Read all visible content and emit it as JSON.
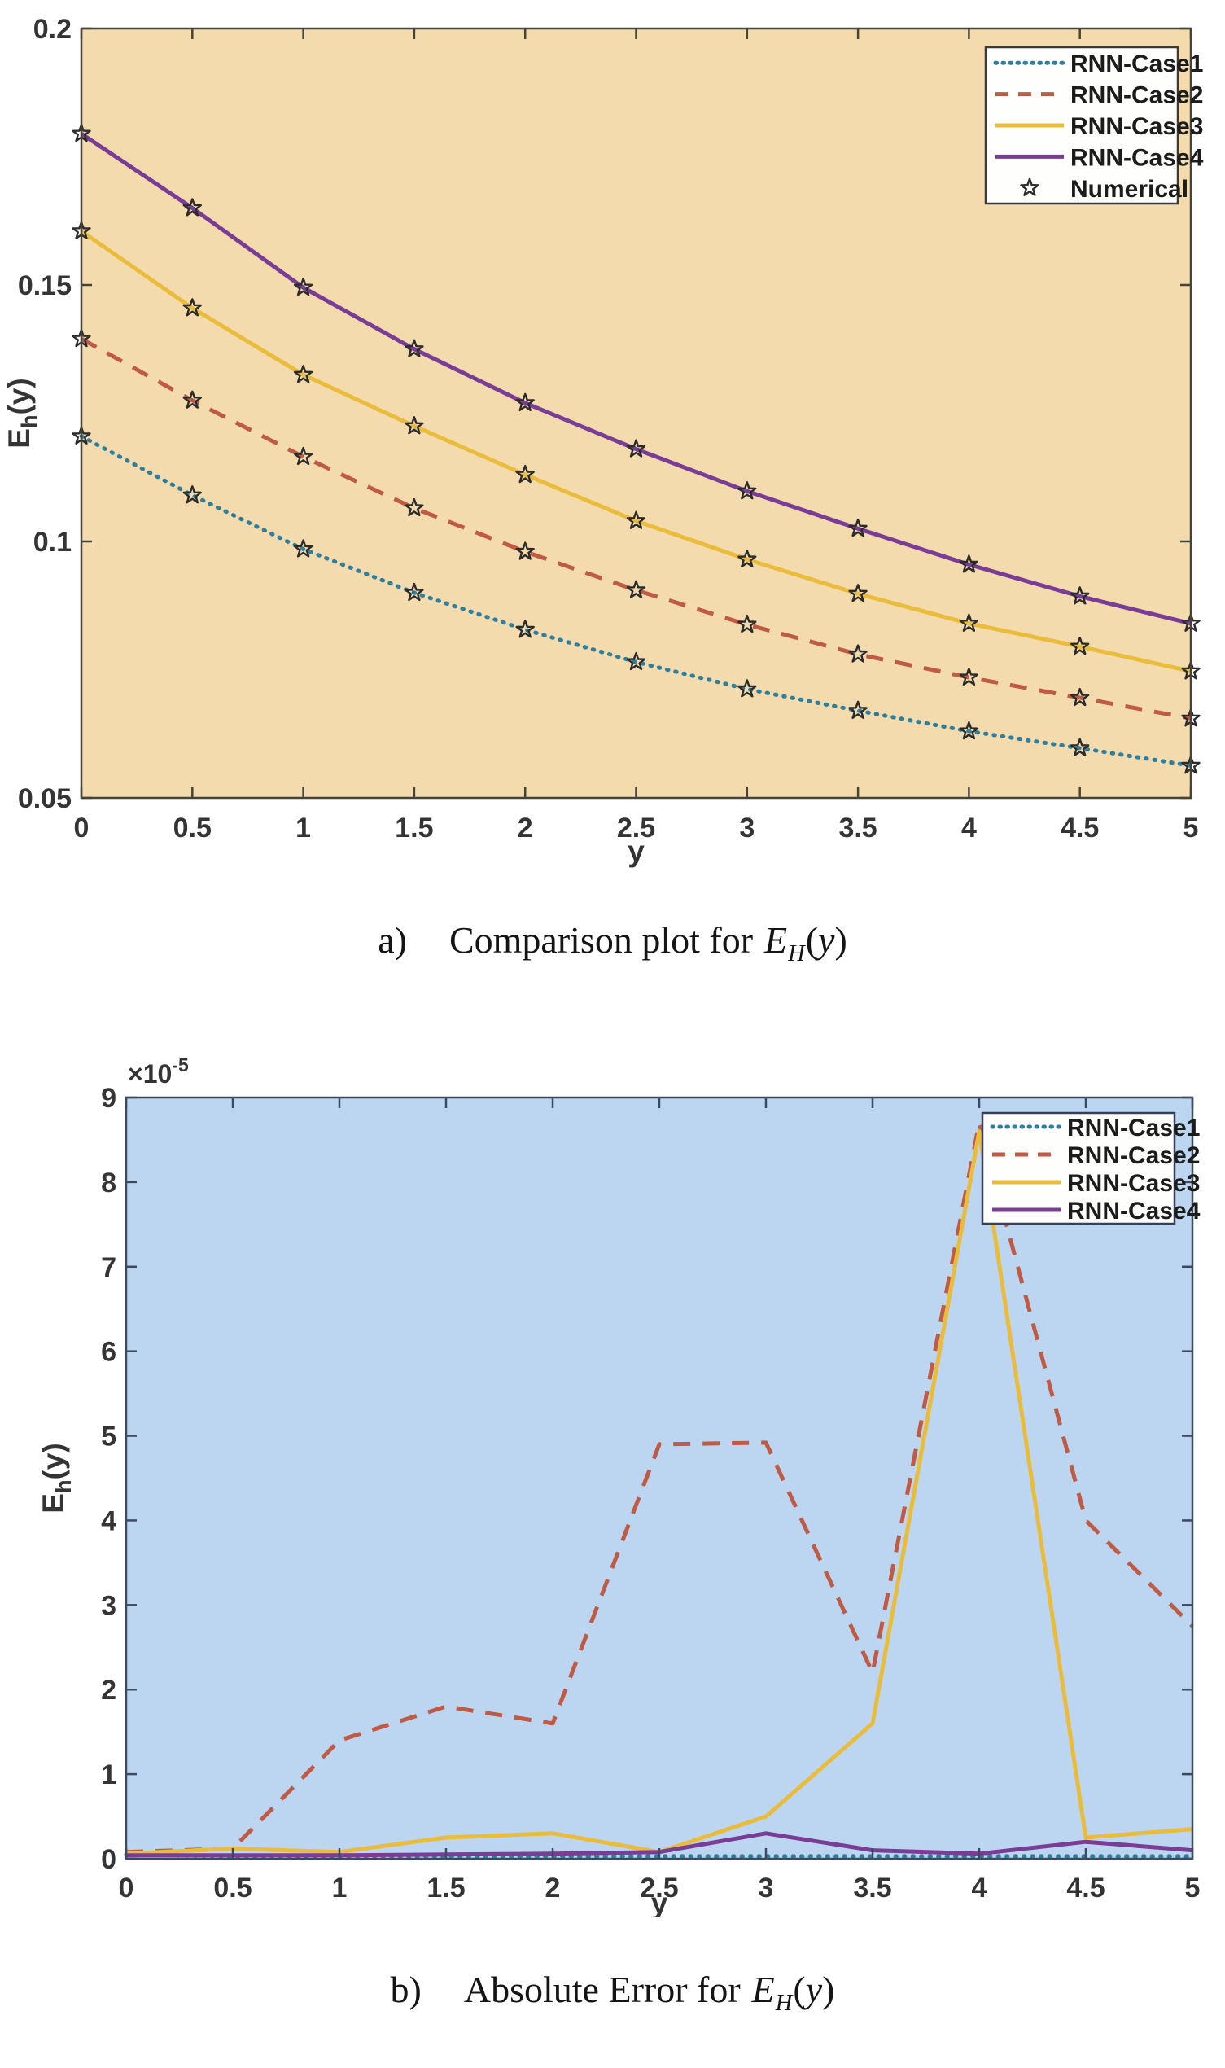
{
  "page": {
    "background": "#ffffff"
  },
  "chart_data": [
    {
      "type": "line",
      "caption_label": "a)",
      "caption_text": "Comparison plot for",
      "caption_math": {
        "main": "E",
        "sub": "H",
        "open": "(",
        "var": "y",
        "close": ")"
      },
      "xlabel": "y",
      "ylabel": {
        "main": "E",
        "sub": "h",
        "tail": "(y)"
      },
      "background": "#f3dbae",
      "axis_color": "#45443b",
      "tick_text_color": "#343434",
      "legend_position": "top-right",
      "legend_border": "#3a3a3a",
      "legend_background": "#fefefc",
      "grid": false,
      "xlim": [
        0,
        5
      ],
      "ylim": [
        0.05,
        0.2
      ],
      "x_ticks": [
        0,
        0.5,
        1,
        1.5,
        2,
        2.5,
        3,
        3.5,
        4,
        4.5,
        5
      ],
      "x_tick_labels": [
        "0",
        "0.5",
        "1",
        "1.5",
        "2",
        "2.5",
        "3",
        "3.5",
        "4",
        "4.5",
        "5"
      ],
      "y_ticks": [
        0.05,
        0.1,
        0.15,
        0.2
      ],
      "y_tick_labels": [
        "0.05",
        "0.1",
        "0.15",
        "0.2"
      ],
      "x": [
        0,
        0.5,
        1,
        1.5,
        2,
        2.5,
        3,
        3.5,
        4,
        4.5,
        5
      ],
      "series": [
        {
          "name": "RNN-Case1",
          "color": "#2e7f9e",
          "style": "dotted",
          "values": [
            0.1205,
            0.109,
            0.0985,
            0.09,
            0.0828,
            0.0765,
            0.0712,
            0.067,
            0.063,
            0.0597,
            0.0563
          ]
        },
        {
          "name": "RNN-Case2",
          "color": "#bf5b45",
          "style": "dashed",
          "values": [
            0.1395,
            0.1275,
            0.1165,
            0.1065,
            0.098,
            0.0905,
            0.0838,
            0.078,
            0.0735,
            0.0695,
            0.0655
          ]
        },
        {
          "name": "RNN-Case3",
          "color": "#eabc3b",
          "style": "solid",
          "values": [
            0.1605,
            0.1455,
            0.1325,
            0.1225,
            0.113,
            0.104,
            0.0965,
            0.0898,
            0.084,
            0.0795,
            0.0747
          ]
        },
        {
          "name": "RNN-Case4",
          "color": "#7a3d96",
          "style": "solid",
          "values": [
            0.1795,
            0.165,
            0.1495,
            0.1375,
            0.127,
            0.118,
            0.1098,
            0.1025,
            0.0955,
            0.0893,
            0.084
          ]
        }
      ],
      "marker_series": {
        "name": "Numerical",
        "marker": "star",
        "color": "#2b2b2b"
      }
    },
    {
      "type": "line",
      "caption_label": "b)",
      "caption_text": "Absolute Error for",
      "caption_math": {
        "main": "E",
        "sub": "H",
        "open": "(",
        "var": "y",
        "close": ")"
      },
      "xlabel": "y",
      "ylabel": {
        "main": "E",
        "sub": "h",
        "tail": "(y)"
      },
      "y_exponent": {
        "base": "×10",
        "exp": "-5"
      },
      "y_unit": "1e-5",
      "background": "#bcd6f2",
      "axis_color": "#3c4a5e",
      "tick_text_color": "#343434",
      "legend_position": "top-right",
      "legend_border": "#36405a",
      "legend_background": "#fefefc",
      "grid": false,
      "xlim": [
        0,
        5
      ],
      "ylim": [
        0,
        9
      ],
      "x_ticks": [
        0,
        0.5,
        1,
        1.5,
        2,
        2.5,
        3,
        3.5,
        4,
        4.5,
        5
      ],
      "x_tick_labels": [
        "0",
        "0.5",
        "1",
        "1.5",
        "2",
        "2.5",
        "3",
        "3.5",
        "4",
        "4.5",
        "5"
      ],
      "y_ticks": [
        0,
        1,
        2,
        3,
        4,
        5,
        6,
        7,
        8,
        9
      ],
      "y_tick_labels": [
        "0",
        "1",
        "2",
        "3",
        "4",
        "5",
        "6",
        "7",
        "8",
        "9"
      ],
      "x": [
        0,
        0.5,
        1,
        1.5,
        2,
        2.5,
        3,
        3.5,
        4,
        4.5,
        5
      ],
      "series": [
        {
          "name": "RNN-Case1",
          "color": "#2e7f9e",
          "style": "dotted",
          "values": [
            0.05,
            0.03,
            0.03,
            0.03,
            0.03,
            0.03,
            0.03,
            0.03,
            0.03,
            0.03,
            0.03
          ]
        },
        {
          "name": "RNN-Case2",
          "color": "#bf5b45",
          "style": "dashed",
          "values": [
            0.08,
            0.12,
            1.4,
            1.8,
            1.6,
            4.9,
            4.92,
            2.2,
            8.7,
            4.0,
            2.75
          ]
        },
        {
          "name": "RNN-Case3",
          "color": "#eabc3b",
          "style": "solid",
          "values": [
            0.06,
            0.12,
            0.08,
            0.25,
            0.3,
            0.08,
            0.5,
            1.6,
            8.6,
            0.25,
            0.35
          ]
        },
        {
          "name": "RNN-Case4",
          "color": "#7a3d96",
          "style": "solid",
          "values": [
            0.04,
            0.04,
            0.04,
            0.05,
            0.06,
            0.08,
            0.3,
            0.1,
            0.06,
            0.2,
            0.1
          ]
        }
      ]
    }
  ]
}
